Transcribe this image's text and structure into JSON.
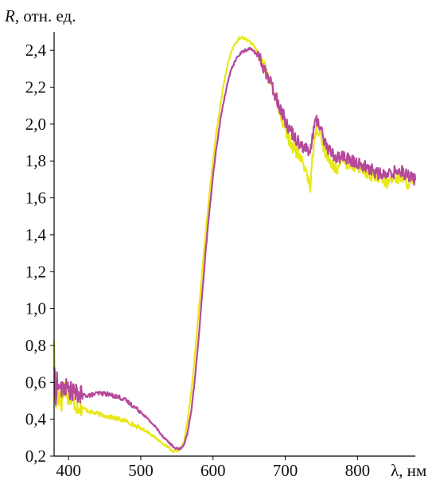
{
  "chart_data": {
    "type": "line",
    "ylabel_symbol": "R",
    "ylabel_units": ", отн. ед.",
    "xlabel": "λ, нм",
    "xlim": [
      380,
      880
    ],
    "ylim": [
      0.2,
      2.5
    ],
    "xticks": [
      400,
      500,
      600,
      700,
      800
    ],
    "xtick_labels": [
      "400",
      "500",
      "600",
      "700",
      "800"
    ],
    "yticks": [
      0.2,
      0.4,
      0.6,
      0.8,
      1.0,
      1.2,
      1.4,
      1.6,
      1.8,
      2.0,
      2.2,
      2.4
    ],
    "ytick_labels": [
      "0,2",
      "0,4",
      "0,6",
      "0,8",
      "1,0",
      "1,2",
      "1,4",
      "1,6",
      "1,8",
      "2,0",
      "2,2",
      "2,4"
    ],
    "grid": false,
    "series": [
      {
        "color": "#e8e818",
        "x": [
          380,
          382,
          384,
          386,
          388,
          390,
          395,
          400,
          410,
          420,
          430,
          440,
          450,
          460,
          470,
          480,
          490,
          500,
          510,
          520,
          530,
          540,
          545,
          550,
          555,
          560,
          565,
          570,
          575,
          580,
          585,
          590,
          595,
          600,
          605,
          610,
          615,
          620,
          625,
          630,
          635,
          640,
          645,
          650,
          655,
          660,
          665,
          670,
          675,
          680,
          685,
          690,
          695,
          700,
          705,
          710,
          715,
          720,
          725,
          730,
          735,
          740,
          745,
          750,
          755,
          760,
          765,
          770,
          775,
          780,
          790,
          800,
          810,
          820,
          830,
          840,
          850,
          860,
          870,
          880
        ],
        "y": [
          0.85,
          0.45,
          0.6,
          0.5,
          0.55,
          0.48,
          0.58,
          0.52,
          0.48,
          0.46,
          0.44,
          0.43,
          0.42,
          0.41,
          0.4,
          0.39,
          0.37,
          0.35,
          0.33,
          0.3,
          0.27,
          0.24,
          0.22,
          0.23,
          0.24,
          0.28,
          0.4,
          0.55,
          0.75,
          0.98,
          1.2,
          1.42,
          1.62,
          1.8,
          1.97,
          2.1,
          2.22,
          2.32,
          2.39,
          2.43,
          2.46,
          2.47,
          2.46,
          2.45,
          2.43,
          2.4,
          2.36,
          2.32,
          2.27,
          2.22,
          2.17,
          2.1,
          2.03,
          1.97,
          1.92,
          1.88,
          1.85,
          1.82,
          1.78,
          1.74,
          1.65,
          1.95,
          1.98,
          1.92,
          1.85,
          1.8,
          1.78,
          1.76,
          1.77,
          1.8,
          1.78,
          1.77,
          1.75,
          1.72,
          1.7,
          1.68,
          1.7,
          1.72,
          1.68,
          1.67
        ]
      },
      {
        "color": "#b5499c",
        "x": [
          380,
          382,
          384,
          386,
          388,
          390,
          395,
          400,
          410,
          420,
          430,
          440,
          450,
          460,
          470,
          480,
          490,
          500,
          510,
          520,
          530,
          540,
          545,
          550,
          555,
          560,
          565,
          570,
          575,
          580,
          585,
          590,
          595,
          600,
          605,
          610,
          615,
          620,
          625,
          630,
          635,
          640,
          645,
          650,
          655,
          660,
          665,
          670,
          675,
          680,
          685,
          690,
          695,
          700,
          705,
          710,
          715,
          720,
          725,
          730,
          735,
          740,
          745,
          750,
          755,
          760,
          765,
          770,
          775,
          780,
          790,
          800,
          810,
          820,
          830,
          840,
          850,
          860,
          870,
          880
        ],
        "y": [
          0.7,
          0.5,
          0.62,
          0.55,
          0.6,
          0.55,
          0.58,
          0.56,
          0.54,
          0.53,
          0.53,
          0.54,
          0.54,
          0.53,
          0.52,
          0.5,
          0.47,
          0.44,
          0.4,
          0.36,
          0.31,
          0.27,
          0.25,
          0.24,
          0.24,
          0.26,
          0.33,
          0.45,
          0.62,
          0.84,
          1.08,
          1.32,
          1.53,
          1.72,
          1.88,
          2.02,
          2.13,
          2.22,
          2.29,
          2.34,
          2.37,
          2.39,
          2.4,
          2.41,
          2.4,
          2.38,
          2.35,
          2.31,
          2.26,
          2.22,
          2.17,
          2.12,
          2.07,
          2.02,
          1.98,
          1.95,
          1.92,
          1.9,
          1.88,
          1.86,
          1.85,
          2.0,
          2.02,
          1.97,
          1.9,
          1.86,
          1.84,
          1.82,
          1.82,
          1.83,
          1.8,
          1.79,
          1.77,
          1.75,
          1.73,
          1.72,
          1.74,
          1.75,
          1.72,
          1.7
        ]
      }
    ]
  }
}
